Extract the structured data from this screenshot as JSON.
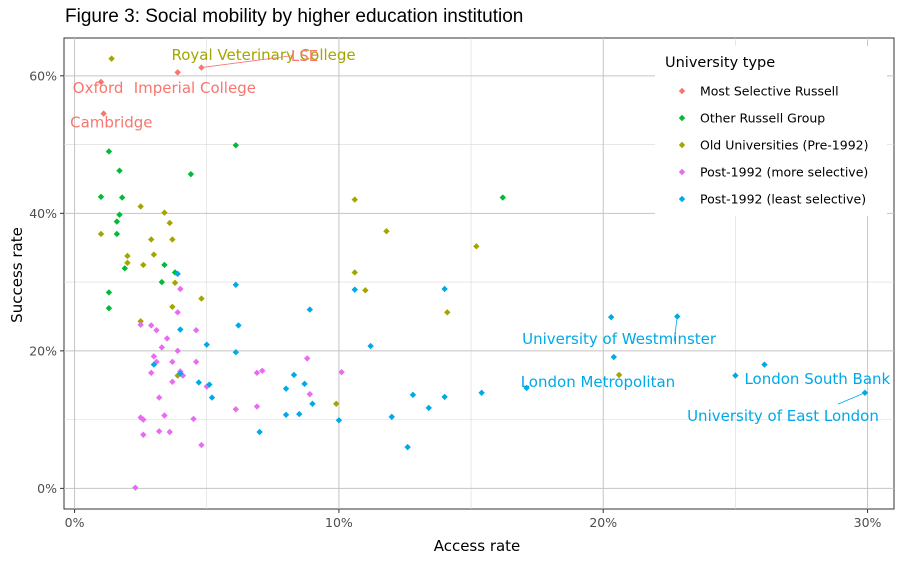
{
  "chart_data": {
    "type": "scatter",
    "title": "Figure 3: Social mobility by higher education institution",
    "xlabel": "Access rate",
    "ylabel": "Success rate",
    "xlim": [
      -0.004,
      0.31
    ],
    "ylim": [
      -0.03,
      0.655
    ],
    "xticks": [
      0,
      0.1,
      0.2,
      0.3
    ],
    "xtick_labels": [
      "0%",
      "10%",
      "20%",
      "30%"
    ],
    "yticks": [
      0,
      0.2,
      0.4,
      0.6
    ],
    "ytick_labels": [
      "0%",
      "20%",
      "40%",
      "60%"
    ],
    "grid": true,
    "legend": {
      "title": "University type",
      "placement": "top-right"
    },
    "series": [
      {
        "name": "Most Selective Russell",
        "color": "#F8766D",
        "points": [
          [
            0.01,
            0.591
          ],
          [
            0.011,
            0.545
          ],
          [
            0.039,
            0.605
          ],
          [
            0.048,
            0.612
          ]
        ]
      },
      {
        "name": "Other Russell Group",
        "color": "#00BA38",
        "points": [
          [
            0.01,
            0.424
          ],
          [
            0.013,
            0.49
          ],
          [
            0.013,
            0.285
          ],
          [
            0.013,
            0.262
          ],
          [
            0.016,
            0.388
          ],
          [
            0.016,
            0.37
          ],
          [
            0.017,
            0.398
          ],
          [
            0.017,
            0.462
          ],
          [
            0.018,
            0.423
          ],
          [
            0.019,
            0.32
          ],
          [
            0.034,
            0.325
          ],
          [
            0.033,
            0.3
          ],
          [
            0.038,
            0.314
          ],
          [
            0.044,
            0.457
          ],
          [
            0.061,
            0.499
          ],
          [
            0.162,
            0.423
          ]
        ]
      },
      {
        "name": "Old Universities (Pre-1992)",
        "color": "#A3A500",
        "points": [
          [
            0.01,
            0.37
          ],
          [
            0.014,
            0.625
          ],
          [
            0.02,
            0.338
          ],
          [
            0.02,
            0.328
          ],
          [
            0.025,
            0.41
          ],
          [
            0.025,
            0.243
          ],
          [
            0.026,
            0.325
          ],
          [
            0.029,
            0.362
          ],
          [
            0.03,
            0.34
          ],
          [
            0.034,
            0.401
          ],
          [
            0.036,
            0.386
          ],
          [
            0.037,
            0.362
          ],
          [
            0.037,
            0.264
          ],
          [
            0.038,
            0.299
          ],
          [
            0.039,
            0.164
          ],
          [
            0.048,
            0.276
          ],
          [
            0.099,
            0.123
          ],
          [
            0.106,
            0.42
          ],
          [
            0.106,
            0.314
          ],
          [
            0.11,
            0.288
          ],
          [
            0.118,
            0.374
          ],
          [
            0.141,
            0.256
          ],
          [
            0.152,
            0.352
          ],
          [
            0.206,
            0.165
          ]
        ]
      },
      {
        "name": "Post-1992 (more selective)",
        "color": "#E76BF3",
        "points": [
          [
            0.023,
            0.001
          ],
          [
            0.025,
            0.103
          ],
          [
            0.025,
            0.238
          ],
          [
            0.026,
            0.1
          ],
          [
            0.026,
            0.078
          ],
          [
            0.029,
            0.237
          ],
          [
            0.029,
            0.168
          ],
          [
            0.03,
            0.192
          ],
          [
            0.031,
            0.184
          ],
          [
            0.031,
            0.23
          ],
          [
            0.032,
            0.132
          ],
          [
            0.032,
            0.083
          ],
          [
            0.033,
            0.205
          ],
          [
            0.034,
            0.106
          ],
          [
            0.035,
            0.218
          ],
          [
            0.036,
            0.082
          ],
          [
            0.037,
            0.155
          ],
          [
            0.037,
            0.184
          ],
          [
            0.039,
            0.256
          ],
          [
            0.039,
            0.2
          ],
          [
            0.04,
            0.29
          ],
          [
            0.04,
            0.17
          ],
          [
            0.041,
            0.164
          ],
          [
            0.045,
            0.101
          ],
          [
            0.046,
            0.23
          ],
          [
            0.046,
            0.184
          ],
          [
            0.048,
            0.063
          ],
          [
            0.05,
            0.148
          ],
          [
            0.061,
            0.115
          ],
          [
            0.069,
            0.168
          ],
          [
            0.069,
            0.119
          ],
          [
            0.071,
            0.171
          ],
          [
            0.088,
            0.189
          ],
          [
            0.089,
            0.137
          ],
          [
            0.101,
            0.169
          ]
        ]
      },
      {
        "name": "Post-1992 (least selective)",
        "color": "#00A9E8",
        "points": [
          [
            0.03,
            0.18
          ],
          [
            0.039,
            0.312
          ],
          [
            0.04,
            0.231
          ],
          [
            0.04,
            0.167
          ],
          [
            0.047,
            0.154
          ],
          [
            0.05,
            0.209
          ],
          [
            0.051,
            0.151
          ],
          [
            0.052,
            0.132
          ],
          [
            0.061,
            0.296
          ],
          [
            0.061,
            0.198
          ],
          [
            0.062,
            0.237
          ],
          [
            0.07,
            0.082
          ],
          [
            0.08,
            0.145
          ],
          [
            0.08,
            0.107
          ],
          [
            0.083,
            0.165
          ],
          [
            0.085,
            0.108
          ],
          [
            0.087,
            0.152
          ],
          [
            0.089,
            0.26
          ],
          [
            0.09,
            0.123
          ],
          [
            0.1,
            0.099
          ],
          [
            0.106,
            0.289
          ],
          [
            0.112,
            0.207
          ],
          [
            0.12,
            0.104
          ],
          [
            0.126,
            0.06
          ],
          [
            0.128,
            0.136
          ],
          [
            0.134,
            0.117
          ],
          [
            0.14,
            0.29
          ],
          [
            0.14,
            0.133
          ],
          [
            0.154,
            0.139
          ],
          [
            0.171,
            0.146
          ],
          [
            0.203,
            0.249
          ],
          [
            0.204,
            0.191
          ],
          [
            0.228,
            0.25
          ],
          [
            0.25,
            0.164
          ],
          [
            0.261,
            0.18
          ],
          [
            0.299,
            0.139
          ]
        ]
      }
    ],
    "annotations": [
      {
        "text": "Royal Veterinary College",
        "series": 2,
        "x": 0.0715,
        "y": 0.63,
        "anchor": "middle",
        "px": 0.014,
        "py": 0.625,
        "leader": false
      },
      {
        "text": "LSE",
        "series": 0,
        "x": 0.087,
        "y": 0.629,
        "anchor": "middle",
        "px": 0.048,
        "py": 0.612,
        "leader": true
      },
      {
        "text": "Oxford",
        "series": 0,
        "x": 0.0089,
        "y": 0.582,
        "anchor": "middle",
        "px": 0.01,
        "py": 0.591,
        "leader": false
      },
      {
        "text": "Imperial College",
        "series": 0,
        "x": 0.0455,
        "y": 0.582,
        "anchor": "middle",
        "px": 0.039,
        "py": 0.605,
        "leader": false
      },
      {
        "text": "Cambridge",
        "series": 0,
        "x": 0.0139,
        "y": 0.532,
        "anchor": "middle",
        "px": 0.011,
        "py": 0.545,
        "leader": false
      },
      {
        "text": "University of Westminster",
        "series": 4,
        "x": 0.206,
        "y": 0.217,
        "anchor": "middle",
        "px": 0.228,
        "py": 0.25,
        "leader": true
      },
      {
        "text": "London Metropolitan",
        "series": 4,
        "x": 0.198,
        "y": 0.155,
        "anchor": "middle",
        "px": 0.25,
        "py": 0.164,
        "leader": false
      },
      {
        "text": "London South Bank",
        "series": 4,
        "x": 0.281,
        "y": 0.159,
        "anchor": "middle",
        "px": 0.261,
        "py": 0.18,
        "leader": false
      },
      {
        "text": "University of East London",
        "series": 4,
        "x": 0.268,
        "y": 0.105,
        "anchor": "middle",
        "px": 0.299,
        "py": 0.139,
        "leader": true
      }
    ]
  }
}
